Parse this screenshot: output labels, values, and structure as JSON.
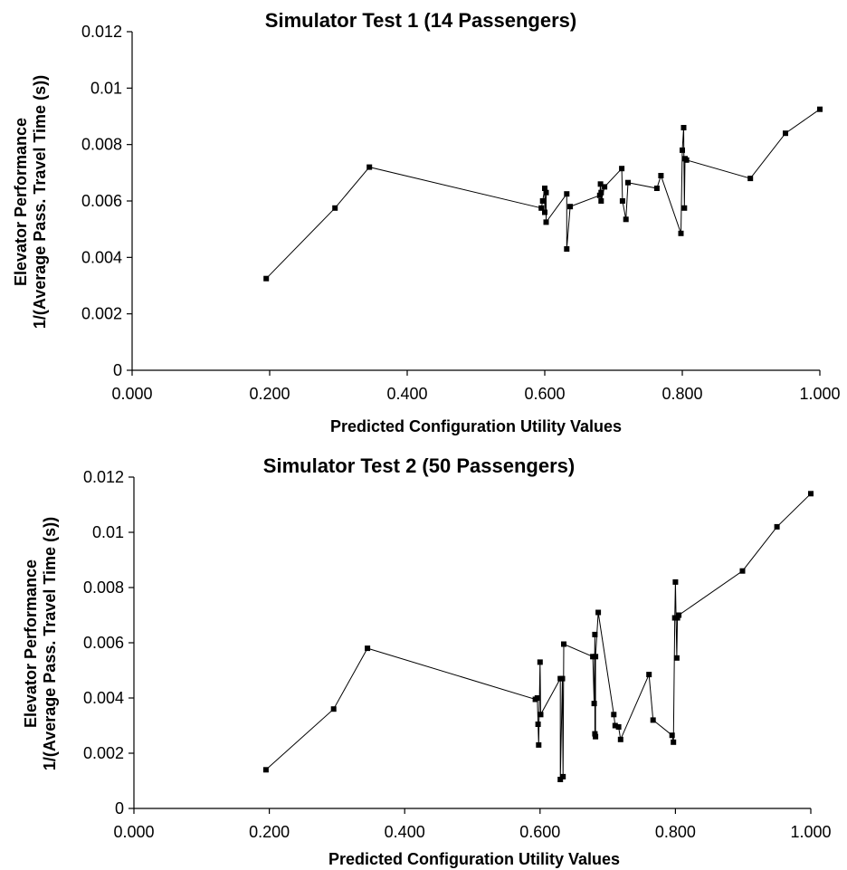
{
  "chart_data": [
    {
      "type": "line",
      "title": "Simulator Test 1 (14 Passengers)",
      "xlabel": "Predicted Configuration Utility Values",
      "ylabel_lines": [
        "Elevator Performance",
        "1/(Average Pass. Travel Time (s))"
      ],
      "xlim": [
        0,
        1
      ],
      "ylim": [
        0,
        0.012
      ],
      "x_ticks": [
        "0.000",
        "0.200",
        "0.400",
        "0.600",
        "0.800",
        "1.000"
      ],
      "y_ticks": [
        "0",
        "0.002",
        "0.004",
        "0.006",
        "0.008",
        "0.01",
        "0.012"
      ],
      "grid": false,
      "series": [
        {
          "points": [
            [
              0.195,
              0.00325
            ],
            [
              0.295,
              0.00575
            ],
            [
              0.345,
              0.0072
            ],
            [
              0.595,
              0.00575
            ],
            [
              0.597,
              0.006
            ],
            [
              0.6,
              0.00645
            ],
            [
              0.6,
              0.0056
            ],
            [
              0.602,
              0.0063
            ],
            [
              0.602,
              0.00525
            ],
            [
              0.632,
              0.00625
            ],
            [
              0.632,
              0.0043
            ],
            [
              0.637,
              0.0058
            ],
            [
              0.68,
              0.0062
            ],
            [
              0.681,
              0.0066
            ],
            [
              0.682,
              0.0063
            ],
            [
              0.682,
              0.006
            ],
            [
              0.687,
              0.0065
            ],
            [
              0.712,
              0.00715
            ],
            [
              0.713,
              0.006
            ],
            [
              0.718,
              0.00535
            ],
            [
              0.721,
              0.00665
            ],
            [
              0.763,
              0.00645
            ],
            [
              0.769,
              0.0069
            ],
            [
              0.798,
              0.00485
            ],
            [
              0.8,
              0.0078
            ],
            [
              0.802,
              0.0086
            ],
            [
              0.803,
              0.00575
            ],
            [
              0.804,
              0.0075
            ],
            [
              0.806,
              0.00745
            ],
            [
              0.899,
              0.0068
            ],
            [
              0.95,
              0.0084
            ],
            [
              1.0,
              0.00925
            ]
          ]
        }
      ]
    },
    {
      "type": "line",
      "title": "Simulator Test 2 (50 Passengers)",
      "xlabel": "Predicted Configuration Utility Values",
      "ylabel_lines": [
        "Elevator Performance",
        "1/(Average Pass. Travel Time (s))"
      ],
      "xlim": [
        0,
        1
      ],
      "ylim": [
        0,
        0.012
      ],
      "x_ticks": [
        "0.000",
        "0.200",
        "0.400",
        "0.600",
        "0.800",
        "1.000"
      ],
      "y_ticks": [
        "0",
        "0.002",
        "0.004",
        "0.006",
        "0.008",
        "0.01",
        "0.012"
      ],
      "grid": false,
      "series": [
        {
          "points": [
            [
              0.195,
              0.0014
            ],
            [
              0.295,
              0.0036
            ],
            [
              0.345,
              0.0058
            ],
            [
              0.593,
              0.00395
            ],
            [
              0.596,
              0.004
            ],
            [
              0.597,
              0.00305
            ],
            [
              0.598,
              0.0023
            ],
            [
              0.6,
              0.0053
            ],
            [
              0.601,
              0.0034
            ],
            [
              0.63,
              0.0047
            ],
            [
              0.63,
              0.00105
            ],
            [
              0.633,
              0.0047
            ],
            [
              0.634,
              0.00115
            ],
            [
              0.635,
              0.00595
            ],
            [
              0.678,
              0.0055
            ],
            [
              0.68,
              0.0038
            ],
            [
              0.681,
              0.0063
            ],
            [
              0.681,
              0.0027
            ],
            [
              0.682,
              0.0026
            ],
            [
              0.682,
              0.0055
            ],
            [
              0.686,
              0.0071
            ],
            [
              0.709,
              0.0034
            ],
            [
              0.711,
              0.003
            ],
            [
              0.716,
              0.00295
            ],
            [
              0.719,
              0.0025
            ],
            [
              0.761,
              0.00485
            ],
            [
              0.767,
              0.0032
            ],
            [
              0.795,
              0.00265
            ],
            [
              0.797,
              0.0024
            ],
            [
              0.799,
              0.0069
            ],
            [
              0.8,
              0.0082
            ],
            [
              0.802,
              0.00545
            ],
            [
              0.803,
              0.0069
            ],
            [
              0.805,
              0.007
            ],
            [
              0.899,
              0.0086
            ],
            [
              0.95,
              0.0102
            ],
            [
              1.0,
              0.0114
            ]
          ]
        }
      ]
    }
  ]
}
